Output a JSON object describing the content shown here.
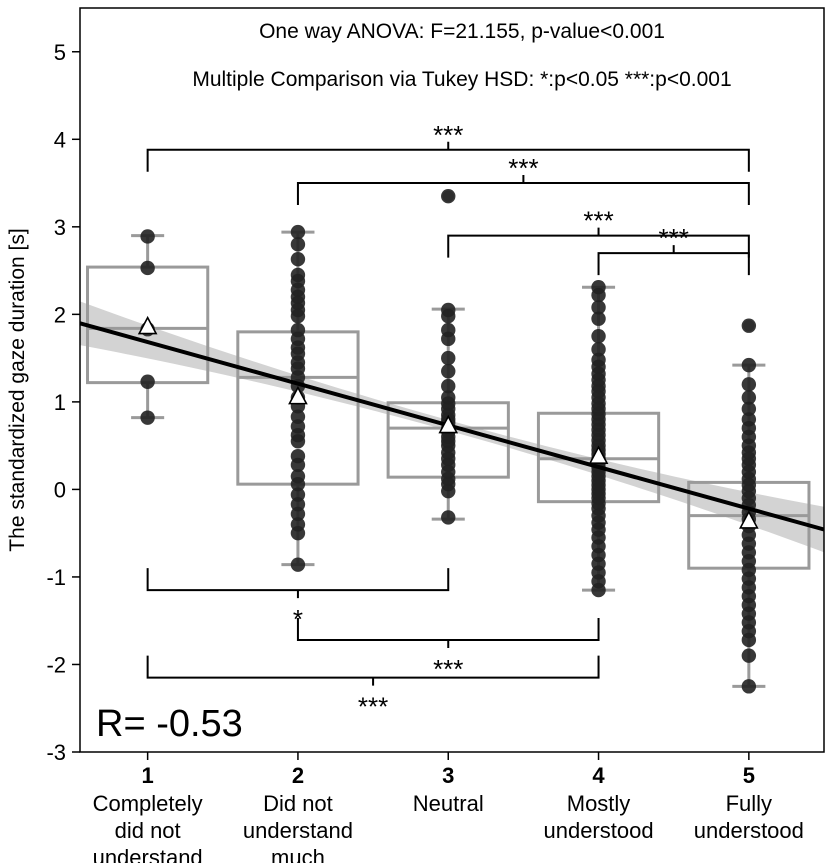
{
  "chart_data": {
    "type": "box",
    "title": "",
    "annotations": {
      "anova": "One way ANOVA:  F=21.155, p-value<0.001",
      "tukey": "Multiple Comparison via Tukey HSD: *:p<0.05 ***:p<0.001",
      "correlation": "R= -0.53"
    },
    "xlabel": "",
    "ylabel": "The standardized gaze duration [s]",
    "ylim": [
      -3,
      5.5
    ],
    "xlim": [
      0.55,
      5.5
    ],
    "y_ticks": [
      "-3",
      "-2",
      "-1",
      "0",
      "1",
      "2",
      "3",
      "4",
      "5"
    ],
    "categories": [
      {
        "x": 1,
        "number": "1",
        "lines": [
          "Completely",
          "did not",
          "understand"
        ]
      },
      {
        "x": 2,
        "number": "2",
        "lines": [
          "Did not",
          "understand",
          "much"
        ]
      },
      {
        "x": 3,
        "number": "3",
        "lines": [
          "Neutral"
        ]
      },
      {
        "x": 4,
        "number": "4",
        "lines": [
          "Mostly",
          "understood"
        ]
      },
      {
        "x": 5,
        "number": "5",
        "lines": [
          "Fully",
          "understood"
        ]
      }
    ],
    "boxes": [
      {
        "x": 1,
        "q1": 1.22,
        "median": 1.84,
        "q3": 2.54,
        "whisker_low": 0.82,
        "whisker_high": 2.9,
        "mean": 1.86,
        "outliers": []
      },
      {
        "x": 2,
        "q1": 0.06,
        "median": 1.28,
        "q3": 1.8,
        "whisker_low": -0.86,
        "whisker_high": 2.94,
        "mean": 1.06,
        "outliers": []
      },
      {
        "x": 3,
        "q1": 0.14,
        "median": 0.7,
        "q3": 0.99,
        "whisker_low": -0.34,
        "whisker_high": 2.06,
        "mean": 0.73,
        "outliers": [
          3.35
        ]
      },
      {
        "x": 4,
        "q1": -0.14,
        "median": 0.35,
        "q3": 0.87,
        "whisker_low": -1.15,
        "whisker_high": 2.31,
        "mean": 0.38,
        "outliers": []
      },
      {
        "x": 5,
        "q1": -0.9,
        "median": -0.3,
        "q3": 0.08,
        "whisker_low": -2.25,
        "whisker_high": 1.42,
        "mean": -0.36,
        "outliers": [
          1.87
        ]
      }
    ],
    "points": [
      {
        "x": 1,
        "values": [
          2.89,
          2.53,
          1.83,
          1.23,
          0.82
        ]
      },
      {
        "x": 2,
        "values": [
          2.94,
          2.8,
          2.63,
          2.45,
          2.38,
          2.28,
          2.2,
          2.13,
          2.05,
          1.98,
          1.82,
          1.72,
          1.62,
          1.55,
          1.45,
          1.38,
          1.28,
          1.18,
          1.05,
          0.95,
          0.83,
          0.72,
          0.62,
          0.55,
          0.38,
          0.28,
          0.15,
          0.06,
          -0.06,
          -0.17,
          -0.28,
          -0.4,
          -0.5,
          -0.86
        ]
      },
      {
        "x": 3,
        "values": [
          3.35,
          2.05,
          1.98,
          1.82,
          1.72,
          1.5,
          1.35,
          1.18,
          1.05,
          0.98,
          0.92,
          0.85,
          0.8,
          0.76,
          0.7,
          0.66,
          0.6,
          0.55,
          0.5,
          0.42,
          0.35,
          0.28,
          0.2,
          0.12,
          0.06,
          -0.02,
          -0.32
        ]
      },
      {
        "x": 4,
        "values": [
          2.31,
          2.22,
          2.08,
          1.95,
          1.75,
          1.6,
          1.48,
          1.4,
          1.32,
          1.25,
          1.18,
          1.12,
          1.05,
          0.98,
          0.92,
          0.86,
          0.8,
          0.74,
          0.68,
          0.62,
          0.56,
          0.5,
          0.45,
          0.4,
          0.35,
          0.3,
          0.25,
          0.2,
          0.15,
          0.1,
          0.05,
          0.0,
          -0.05,
          -0.1,
          -0.16,
          -0.22,
          -0.3,
          -0.38,
          -0.46,
          -0.55,
          -0.65,
          -0.75,
          -0.85,
          -0.95,
          -1.05,
          -1.15
        ]
      },
      {
        "x": 5,
        "values": [
          1.87,
          1.42,
          1.2,
          1.05,
          0.92,
          0.8,
          0.7,
          0.6,
          0.5,
          0.42,
          0.35,
          0.28,
          0.2,
          0.12,
          0.05,
          -0.02,
          -0.1,
          -0.18,
          -0.26,
          -0.34,
          -0.42,
          -0.52,
          -0.62,
          -0.72,
          -0.82,
          -0.92,
          -1.02,
          -1.12,
          -1.22,
          -1.32,
          -1.42,
          -1.52,
          -1.62,
          -1.72,
          -1.9,
          -2.25
        ]
      }
    ],
    "regression": {
      "intercept": 2.16,
      "slope": -0.476,
      "x_start": 0.55,
      "x_end": 5.5,
      "band_at_start": 0.25,
      "band_at_mid": 0.06,
      "band_at_end": 0.26
    },
    "brackets": [
      {
        "x1": 1,
        "x2": 5,
        "y": 3.88,
        "side": "above",
        "label": "***",
        "label_x": 3.0
      },
      {
        "x1": 2,
        "x2": 5,
        "y": 3.5,
        "side": "above",
        "label": "***",
        "label_x": 3.5
      },
      {
        "x1": 3,
        "x2": 5,
        "y": 2.9,
        "side": "above",
        "label": "***",
        "label_x": 4.0
      },
      {
        "x1": 4,
        "x2": 5,
        "y": 2.7,
        "side": "above",
        "label": "***",
        "label_x": 4.5
      },
      {
        "x1": 1,
        "x2": 3,
        "y": -1.15,
        "side": "below",
        "label": "*",
        "label_x": 2.0
      },
      {
        "x1": 2,
        "x2": 4,
        "y": -1.72,
        "side": "below",
        "label": "***",
        "label_x": 3.0
      },
      {
        "x1": 1,
        "x2": 4,
        "y": -2.15,
        "side": "below",
        "label": "***",
        "label_x": 2.5
      }
    ],
    "colors": {
      "box": "#9a9a9a",
      "point": "#222222",
      "line": "#000000",
      "band": "#d3d3d3"
    },
    "grid": false,
    "legend": "none"
  }
}
